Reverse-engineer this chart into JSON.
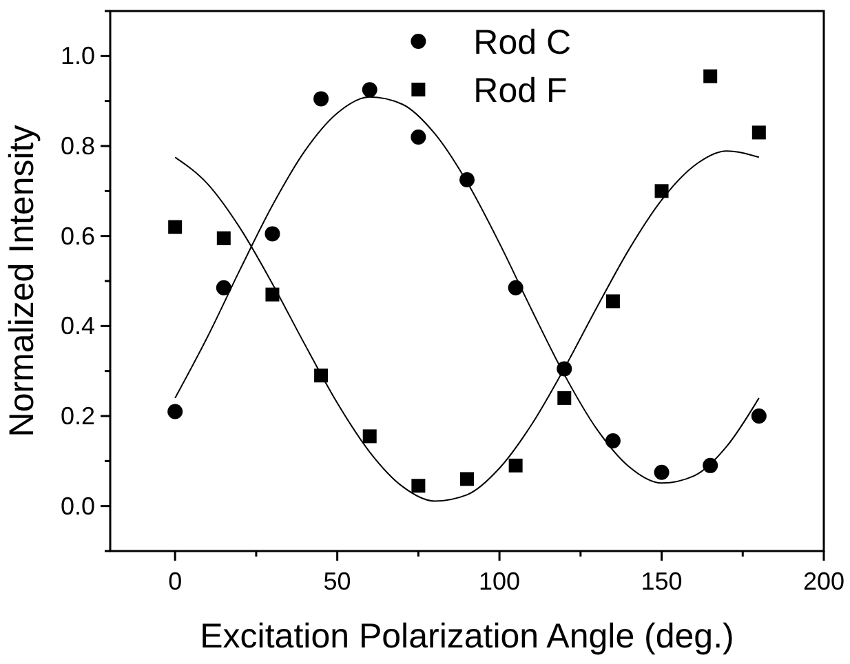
{
  "chart_data": {
    "type": "scatter",
    "xlabel": "Excitation Polarization Angle  (deg.)",
    "ylabel": "Normalized Intensity",
    "x": [
      0,
      15,
      30,
      45,
      60,
      75,
      90,
      105,
      120,
      135,
      150,
      165,
      180
    ],
    "series": [
      {
        "name": "Rod C",
        "color": "#000000",
        "marker": "circle",
        "values": [
          0.21,
          0.485,
          0.605,
          0.905,
          0.925,
          0.82,
          0.725,
          0.485,
          0.305,
          0.145,
          0.075,
          0.09,
          0.2
        ]
      },
      {
        "name": "Rod F",
        "color": "#000000",
        "marker": "square",
        "values": [
          0.62,
          0.595,
          0.47,
          0.29,
          0.155,
          0.045,
          0.06,
          0.09,
          0.24,
          0.455,
          0.7,
          0.955,
          0.83
        ]
      },
      {
        "type": "line",
        "color": "#000000",
        "marker": "none",
        "x": [
          0,
          10,
          20,
          30,
          40,
          50,
          60,
          70,
          80,
          90,
          100,
          110,
          120,
          130,
          140,
          150,
          160,
          170,
          180
        ],
        "values": [
          0.24,
          0.376,
          0.525,
          0.668,
          0.789,
          0.873,
          0.909,
          0.893,
          0.828,
          0.72,
          0.584,
          0.435,
          0.292,
          0.171,
          0.087,
          0.051,
          0.067,
          0.132,
          0.24
        ]
      },
      {
        "type": "line",
        "color": "#000000",
        "marker": "none",
        "x": [
          0,
          10,
          20,
          30,
          40,
          50,
          60,
          70,
          80,
          90,
          100,
          110,
          120,
          130,
          140,
          150,
          160,
          170,
          180
        ],
        "values": [
          0.775,
          0.716,
          0.618,
          0.494,
          0.359,
          0.229,
          0.12,
          0.044,
          0.011,
          0.025,
          0.084,
          0.182,
          0.306,
          0.441,
          0.571,
          0.68,
          0.756,
          0.789,
          0.775
        ]
      }
    ],
    "xlim": [
      -20,
      200
    ],
    "xticks": [
      0,
      {
        "value": 25,
        "label": null
      },
      50,
      {
        "value": 75,
        "label": null
      },
      100,
      {
        "value": 125,
        "label": null
      },
      150,
      {
        "value": 175,
        "label": null
      },
      200
    ],
    "ylim": [
      -0.1,
      1.1
    ],
    "yticks": [
      {
        "value": -0.1,
        "label": null
      },
      {
        "value": 0,
        "label": "0.0"
      },
      {
        "value": 0.1,
        "label": null
      },
      0.2,
      {
        "value": 0.3,
        "label": null
      },
      0.4,
      {
        "value": 0.5,
        "label": null
      },
      0.6,
      {
        "value": 0.7,
        "label": null
      },
      0.8,
      {
        "value": 0.9,
        "label": null
      },
      {
        "value": 1.0,
        "label": "1.0"
      },
      {
        "value": 1.1,
        "label": null
      }
    ],
    "grid": false,
    "legend": "top right",
    "line_style": "solid"
  }
}
